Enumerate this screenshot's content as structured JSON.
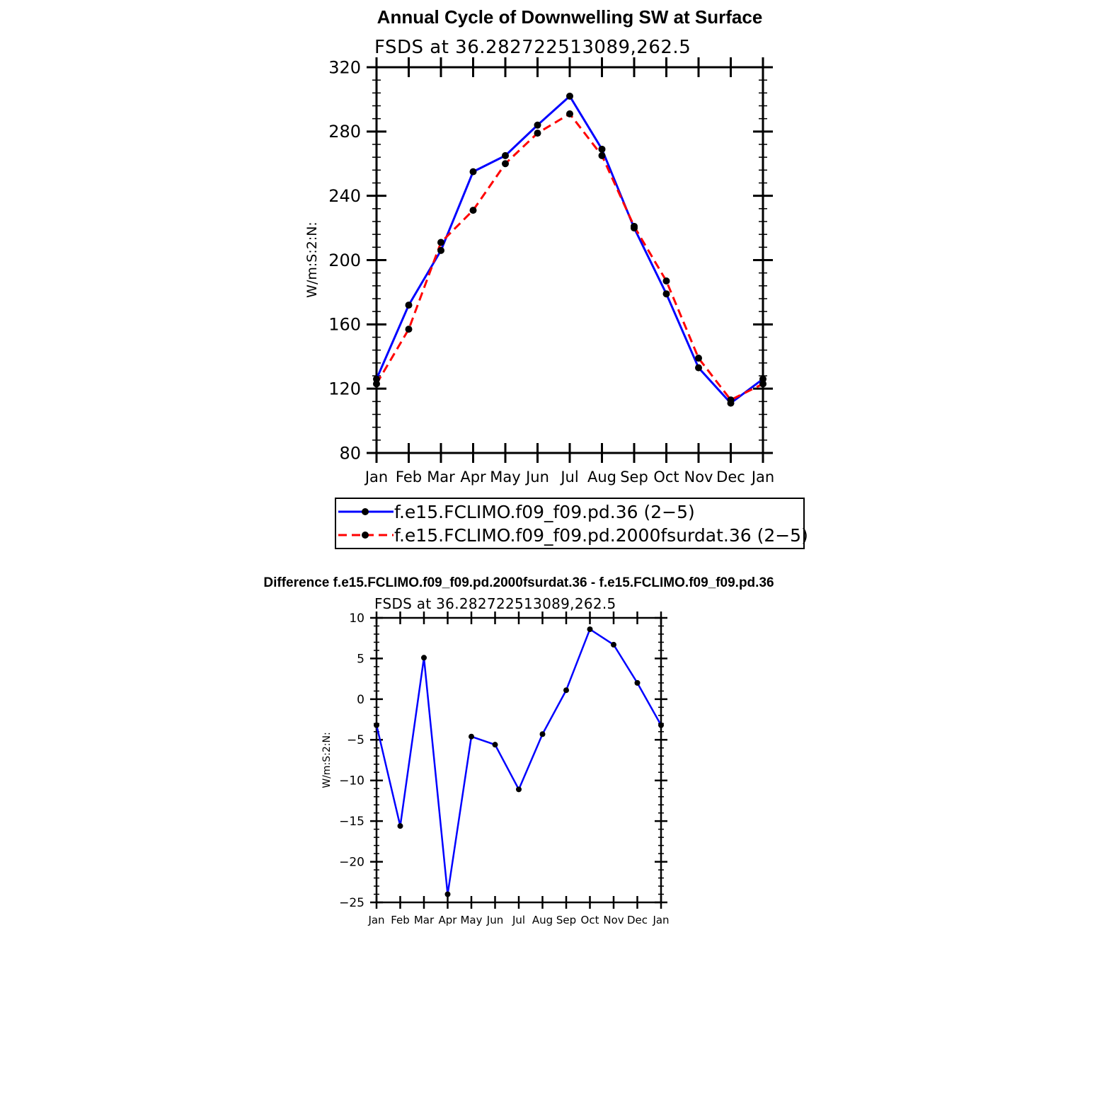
{
  "chart_data": [
    {
      "type": "line",
      "title": "Annual Cycle of Downwelling SW at Surface",
      "subtitle": "FSDS at 36.282722513089,262.5",
      "xlabel": "",
      "ylabel": "W/m:S:2:N:",
      "categories": [
        "Jan",
        "Feb",
        "Mar",
        "Apr",
        "May",
        "Jun",
        "Jul",
        "Aug",
        "Sep",
        "Oct",
        "Nov",
        "Dec",
        "Jan"
      ],
      "ylim": [
        80,
        320
      ],
      "yticks": [
        80,
        120,
        160,
        200,
        240,
        280,
        320
      ],
      "grid": false,
      "legend_position": "bottom",
      "series": [
        {
          "name": "f.e15.FCLIMO.f09_f09.pd.36 (2−5)",
          "color": "#0000ff",
          "dash": "solid",
          "values": [
            126,
            172,
            206,
            255,
            265,
            284,
            302,
            269,
            220,
            179,
            133,
            111,
            126
          ]
        },
        {
          "name": "f.e15.FCLIMO.f09_f09.pd.2000fsurdat.36 (2−5)",
          "color": "#ff0000",
          "dash": "dashed",
          "values": [
            123,
            157,
            211,
            231,
            260,
            279,
            291,
            265,
            221,
            187,
            139,
            113,
            123
          ]
        }
      ]
    },
    {
      "type": "line",
      "title": "Difference f.e15.FCLIMO.f09_f09.pd.2000fsurdat.36 - f.e15.FCLIMO.f09_f09.pd.36",
      "subtitle": "FSDS at 36.282722513089,262.5",
      "xlabel": "",
      "ylabel": "W/m:S:2:N:",
      "categories": [
        "Jan",
        "Feb",
        "Mar",
        "Apr",
        "May",
        "Jun",
        "Jul",
        "Aug",
        "Sep",
        "Oct",
        "Nov",
        "Dec",
        "Jan"
      ],
      "ylim": [
        -25,
        10
      ],
      "yticks": [
        -25,
        -20,
        -15,
        -10,
        -5,
        0,
        5,
        10
      ],
      "ytick_labels": [
        "−25",
        "−20",
        "−15",
        "−10",
        "−5",
        "0",
        "5",
        "10"
      ],
      "grid": false,
      "series": [
        {
          "name": "",
          "color": "#0000ff",
          "dash": "solid",
          "values": [
            -3.2,
            -15.6,
            5.1,
            -24.0,
            -4.6,
            -5.6,
            -11.1,
            -4.3,
            1.1,
            8.6,
            6.7,
            2.0,
            -3.2
          ]
        }
      ]
    }
  ]
}
